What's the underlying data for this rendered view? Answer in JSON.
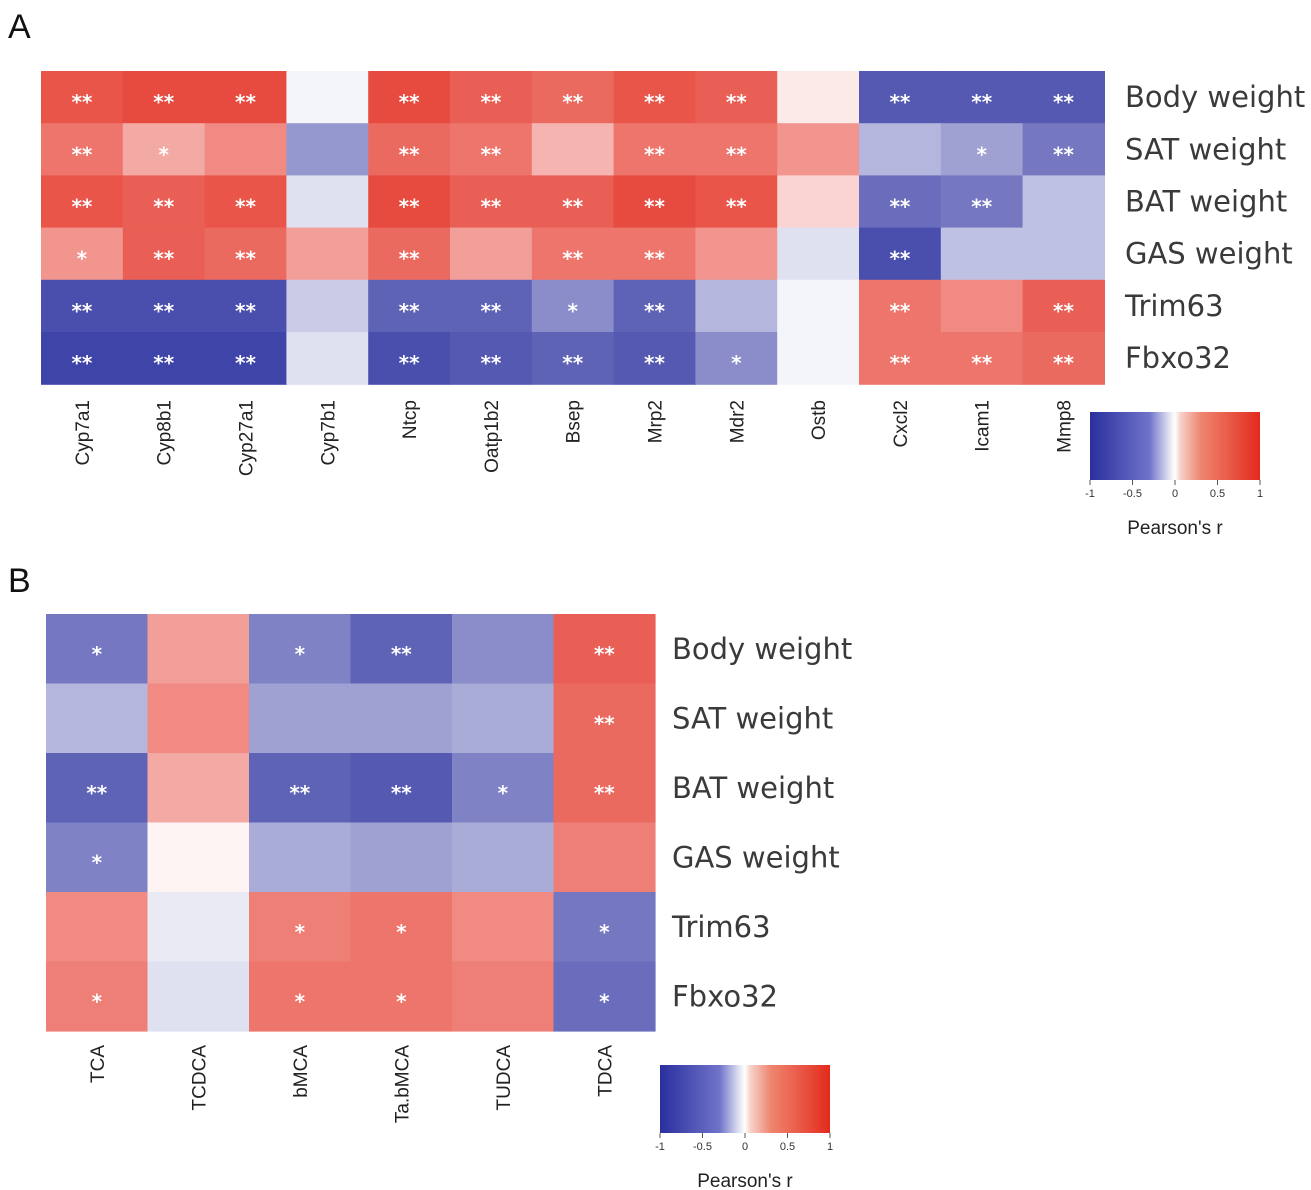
{
  "chart_data": [
    {
      "type": "heatmap",
      "panel_label": "A",
      "rows": [
        "Body weight",
        "SAT weight",
        "BAT weight",
        "GAS weight",
        "Trim63",
        "Fbxo32"
      ],
      "columns": [
        "Cyp7a1",
        "Cyp8b1",
        "Cyp27a1",
        "Cyp7b1",
        "Ntcp",
        "Oatp1b2",
        "Bsep",
        "Mrp2",
        "Mdr2",
        "Ostb",
        "Cxcl2",
        "Icam1",
        "Mmp8"
      ],
      "values": [
        [
          0.8,
          0.85,
          0.85,
          -0.05,
          0.85,
          0.75,
          0.7,
          0.8,
          0.75,
          0.1,
          -0.8,
          -0.8,
          -0.8
        ],
        [
          0.65,
          0.4,
          0.55,
          -0.5,
          0.7,
          0.65,
          0.35,
          0.65,
          0.65,
          0.5,
          -0.35,
          -0.45,
          -0.65
        ],
        [
          0.8,
          0.75,
          0.8,
          -0.15,
          0.85,
          0.75,
          0.75,
          0.85,
          0.8,
          0.2,
          -0.7,
          -0.65,
          -0.3
        ],
        [
          0.5,
          0.75,
          0.7,
          0.45,
          0.7,
          0.45,
          0.65,
          0.65,
          0.5,
          -0.15,
          -0.85,
          -0.3,
          -0.3
        ],
        [
          -0.85,
          -0.85,
          -0.85,
          -0.25,
          -0.75,
          -0.75,
          -0.55,
          -0.75,
          -0.35,
          -0.05,
          0.65,
          0.55,
          0.75
        ],
        [
          -0.9,
          -0.9,
          -0.9,
          -0.15,
          -0.85,
          -0.8,
          -0.75,
          -0.8,
          -0.55,
          -0.05,
          0.65,
          0.65,
          0.7
        ]
      ],
      "significance": [
        [
          "**",
          "**",
          "**",
          "",
          "**",
          "**",
          "**",
          "**",
          "**",
          "",
          "**",
          "**",
          "**"
        ],
        [
          "**",
          "*",
          "",
          "",
          "**",
          "**",
          "",
          "**",
          "**",
          "",
          "",
          "*",
          "**"
        ],
        [
          "**",
          "**",
          "**",
          "",
          "**",
          "**",
          "**",
          "**",
          "**",
          "",
          "**",
          "**",
          ""
        ],
        [
          "*",
          "**",
          "**",
          "",
          "**",
          "",
          "**",
          "**",
          "",
          "",
          "**",
          "",
          ""
        ],
        [
          "**",
          "**",
          "**",
          "",
          "**",
          "**",
          "*",
          "**",
          "",
          "",
          "**",
          "",
          "**"
        ],
        [
          "**",
          "**",
          "**",
          "",
          "**",
          "**",
          "**",
          "**",
          "*",
          "",
          "**",
          "**",
          "**"
        ]
      ],
      "legend": {
        "title": "Pearson's r",
        "ticks": [
          "-1",
          "-0.5",
          "0",
          "0.5",
          "1"
        ],
        "range": [
          -1,
          1
        ],
        "colors": {
          "low": "#2a2f9e",
          "mid": "#ffffff",
          "high": "#e32a1c"
        }
      }
    },
    {
      "type": "heatmap",
      "panel_label": "B",
      "rows": [
        "Body weight",
        "SAT weight",
        "BAT weight",
        "GAS weight",
        "Trim63",
        "Fbxo32"
      ],
      "columns": [
        "TCA",
        "TCDCA",
        "bMCA",
        "Ta.bMCA",
        "TUDCA",
        "TDCA"
      ],
      "values": [
        [
          -0.65,
          0.45,
          -0.6,
          -0.75,
          -0.55,
          0.75
        ],
        [
          -0.35,
          0.55,
          -0.45,
          -0.45,
          -0.4,
          0.7
        ],
        [
          -0.75,
          0.4,
          -0.75,
          -0.8,
          -0.6,
          0.7
        ],
        [
          -0.6,
          0.05,
          -0.4,
          -0.45,
          -0.4,
          0.6
        ],
        [
          0.55,
          -0.1,
          0.6,
          0.65,
          0.55,
          -0.65
        ],
        [
          0.6,
          -0.15,
          0.65,
          0.65,
          0.6,
          -0.7
        ]
      ],
      "significance": [
        [
          "*",
          "",
          "*",
          "**",
          "",
          "**"
        ],
        [
          "",
          "",
          "",
          "",
          "",
          "**"
        ],
        [
          "**",
          "",
          "**",
          "**",
          "*",
          "**"
        ],
        [
          "*",
          "",
          "",
          "",
          "",
          ""
        ],
        [
          "",
          "",
          "*",
          "*",
          "",
          "*"
        ],
        [
          "*",
          "",
          "*",
          "*",
          "",
          "*"
        ]
      ],
      "legend": {
        "title": "Pearson's r",
        "ticks": [
          "-1",
          "-0.5",
          "0",
          "0.5",
          "1"
        ],
        "range": [
          -1,
          1
        ],
        "colors": {
          "low": "#2a2f9e",
          "mid": "#ffffff",
          "high": "#e32a1c"
        }
      }
    }
  ]
}
